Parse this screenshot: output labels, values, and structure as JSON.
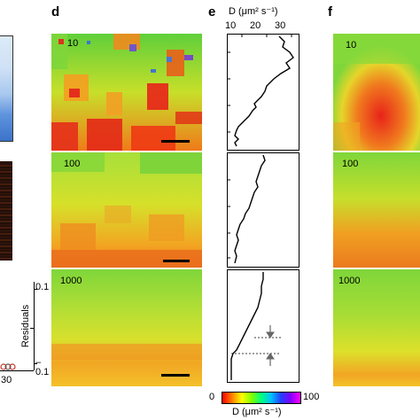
{
  "panels": {
    "d": {
      "letter": "d",
      "maps": [
        {
          "label": "10"
        },
        {
          "label": "100"
        },
        {
          "label": "1000"
        }
      ]
    },
    "e": {
      "letter": "e",
      "axis_title": "D (μm² s⁻¹)",
      "axis_ticks": [
        "10",
        "20",
        "30"
      ],
      "profile_tracks": 3
    },
    "f": {
      "letter": "f",
      "maps": [
        {
          "label": "10"
        },
        {
          "label": "100"
        },
        {
          "label": "1000"
        }
      ]
    },
    "left_partial": {
      "residuals_label": "Residuals",
      "residual_ticks": [
        "0.1",
        "–0.1"
      ],
      "x_tick": "30"
    }
  },
  "colorbar": {
    "min_label": "0",
    "max_label": "100",
    "title": "D (μm² s⁻¹)",
    "colors": [
      "#ff0000",
      "#ff8000",
      "#ffff00",
      "#80ff00",
      "#00ff80",
      "#00c0ff",
      "#2040ff",
      "#8000ff",
      "#ff00ff"
    ]
  },
  "colors": {
    "hot": "#e8231a",
    "warm": "#f5a623",
    "mid": "#9bd93a",
    "cool": "#3fc24a",
    "blue_accent": "#3a64e0"
  }
}
